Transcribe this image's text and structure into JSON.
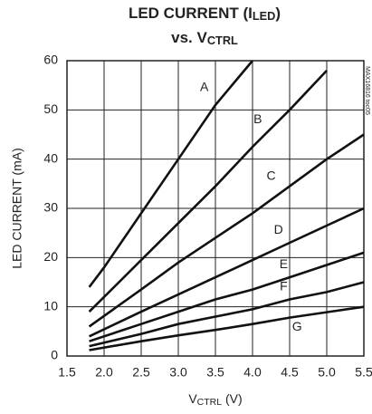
{
  "chart_data": {
    "type": "line",
    "title_lines": [
      [
        {
          "text": "LED CURRENT (I"
        },
        {
          "text": "LED",
          "sub": true
        },
        {
          "text": ")"
        }
      ],
      [
        {
          "text": "vs. V"
        },
        {
          "text": "CTRL",
          "sub": true
        }
      ]
    ],
    "x_label": [
      {
        "text": "V"
      },
      {
        "text": "CTRL",
        "sub": true
      },
      {
        "text": " (V)"
      }
    ],
    "y_label": "LED CURRENT (mA)",
    "annotation": "MAX16816 toc05",
    "xlim": [
      1.5,
      5.5
    ],
    "xticks": [
      1.5,
      {
        "value": 2,
        "label": "2.0"
      },
      2.5,
      {
        "value": 3,
        "label": "3.0"
      },
      3.5,
      {
        "value": 4,
        "label": "4.0"
      },
      4.5,
      {
        "value": 5,
        "label": "5.0"
      },
      5.5
    ],
    "ylim": [
      0,
      60
    ],
    "yticks": [
      0,
      10,
      20,
      30,
      40,
      50,
      60
    ],
    "grid": true,
    "color": "#111111",
    "series": [
      {
        "name": "A",
        "x": [
          1.8,
          2.0,
          2.5,
          3.0,
          3.5,
          4.0
        ],
        "values": [
          14,
          18,
          29,
          40,
          51,
          60
        ]
      },
      {
        "name": "B",
        "x": [
          1.8,
          2.5,
          3.0,
          3.5,
          4.0,
          4.5,
          5.0
        ],
        "values": [
          9,
          19.5,
          27,
          34.5,
          42.5,
          50,
          58
        ]
      },
      {
        "name": "C",
        "x": [
          1.8,
          2.5,
          3.0,
          3.5,
          4.0,
          4.5,
          5.0,
          5.5
        ],
        "values": [
          6,
          13.5,
          19,
          24,
          29,
          34.5,
          40,
          45
        ]
      },
      {
        "name": "D",
        "x": [
          1.8,
          2.5,
          3.0,
          3.5,
          4.0,
          4.5,
          5.0,
          5.5
        ],
        "values": [
          4,
          9,
          12.5,
          16,
          19.5,
          23,
          26.5,
          30
        ]
      },
      {
        "name": "E",
        "x": [
          1.8,
          2.5,
          3.0,
          3.5,
          4.0,
          4.5,
          5.0,
          5.5
        ],
        "values": [
          3,
          6.5,
          9,
          11.5,
          13.5,
          16,
          18.5,
          21
        ]
      },
      {
        "name": "F",
        "x": [
          1.8,
          2.5,
          3.0,
          3.5,
          4.0,
          4.5,
          5.0,
          5.5
        ],
        "values": [
          2,
          4.5,
          6.5,
          8,
          9.5,
          11.5,
          13,
          15
        ]
      },
      {
        "name": "G",
        "x": [
          1.8,
          2.5,
          3.0,
          3.5,
          4.0,
          4.5,
          5.0,
          5.5
        ],
        "values": [
          1.2,
          3,
          4.2,
          5.3,
          6.5,
          7.8,
          8.9,
          10
        ]
      }
    ]
  }
}
